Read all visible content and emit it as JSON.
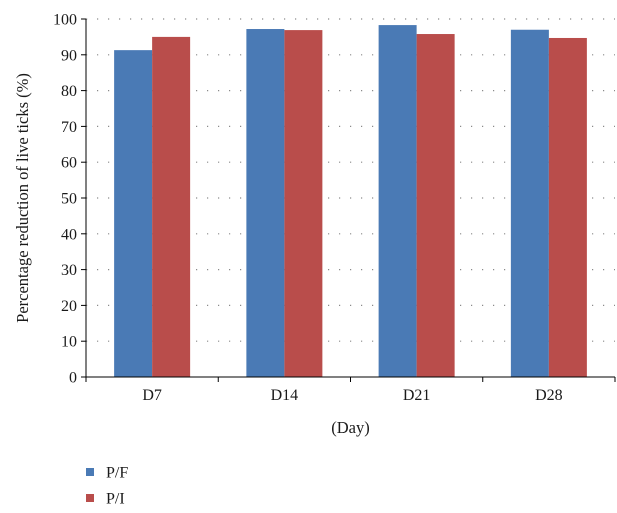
{
  "chart_data": {
    "type": "bar",
    "categories": [
      "D7",
      "D14",
      "D21",
      "D28"
    ],
    "series": [
      {
        "name": "P/F",
        "values": [
          91.3,
          97.2,
          98.3,
          97.0
        ],
        "color": "#4a7ab5"
      },
      {
        "name": "P/I",
        "values": [
          95.0,
          96.9,
          95.8,
          94.7
        ],
        "color": "#b94d4b"
      }
    ],
    "ylabel": "Percentage reduction of live ticks (%)",
    "xlabel": "(Day)",
    "ylim": [
      0,
      100
    ],
    "yticks": [
      0,
      10,
      20,
      30,
      40,
      50,
      60,
      70,
      80,
      90,
      100
    ],
    "grid": "dotted horizontal",
    "legend": "bottom-left"
  }
}
